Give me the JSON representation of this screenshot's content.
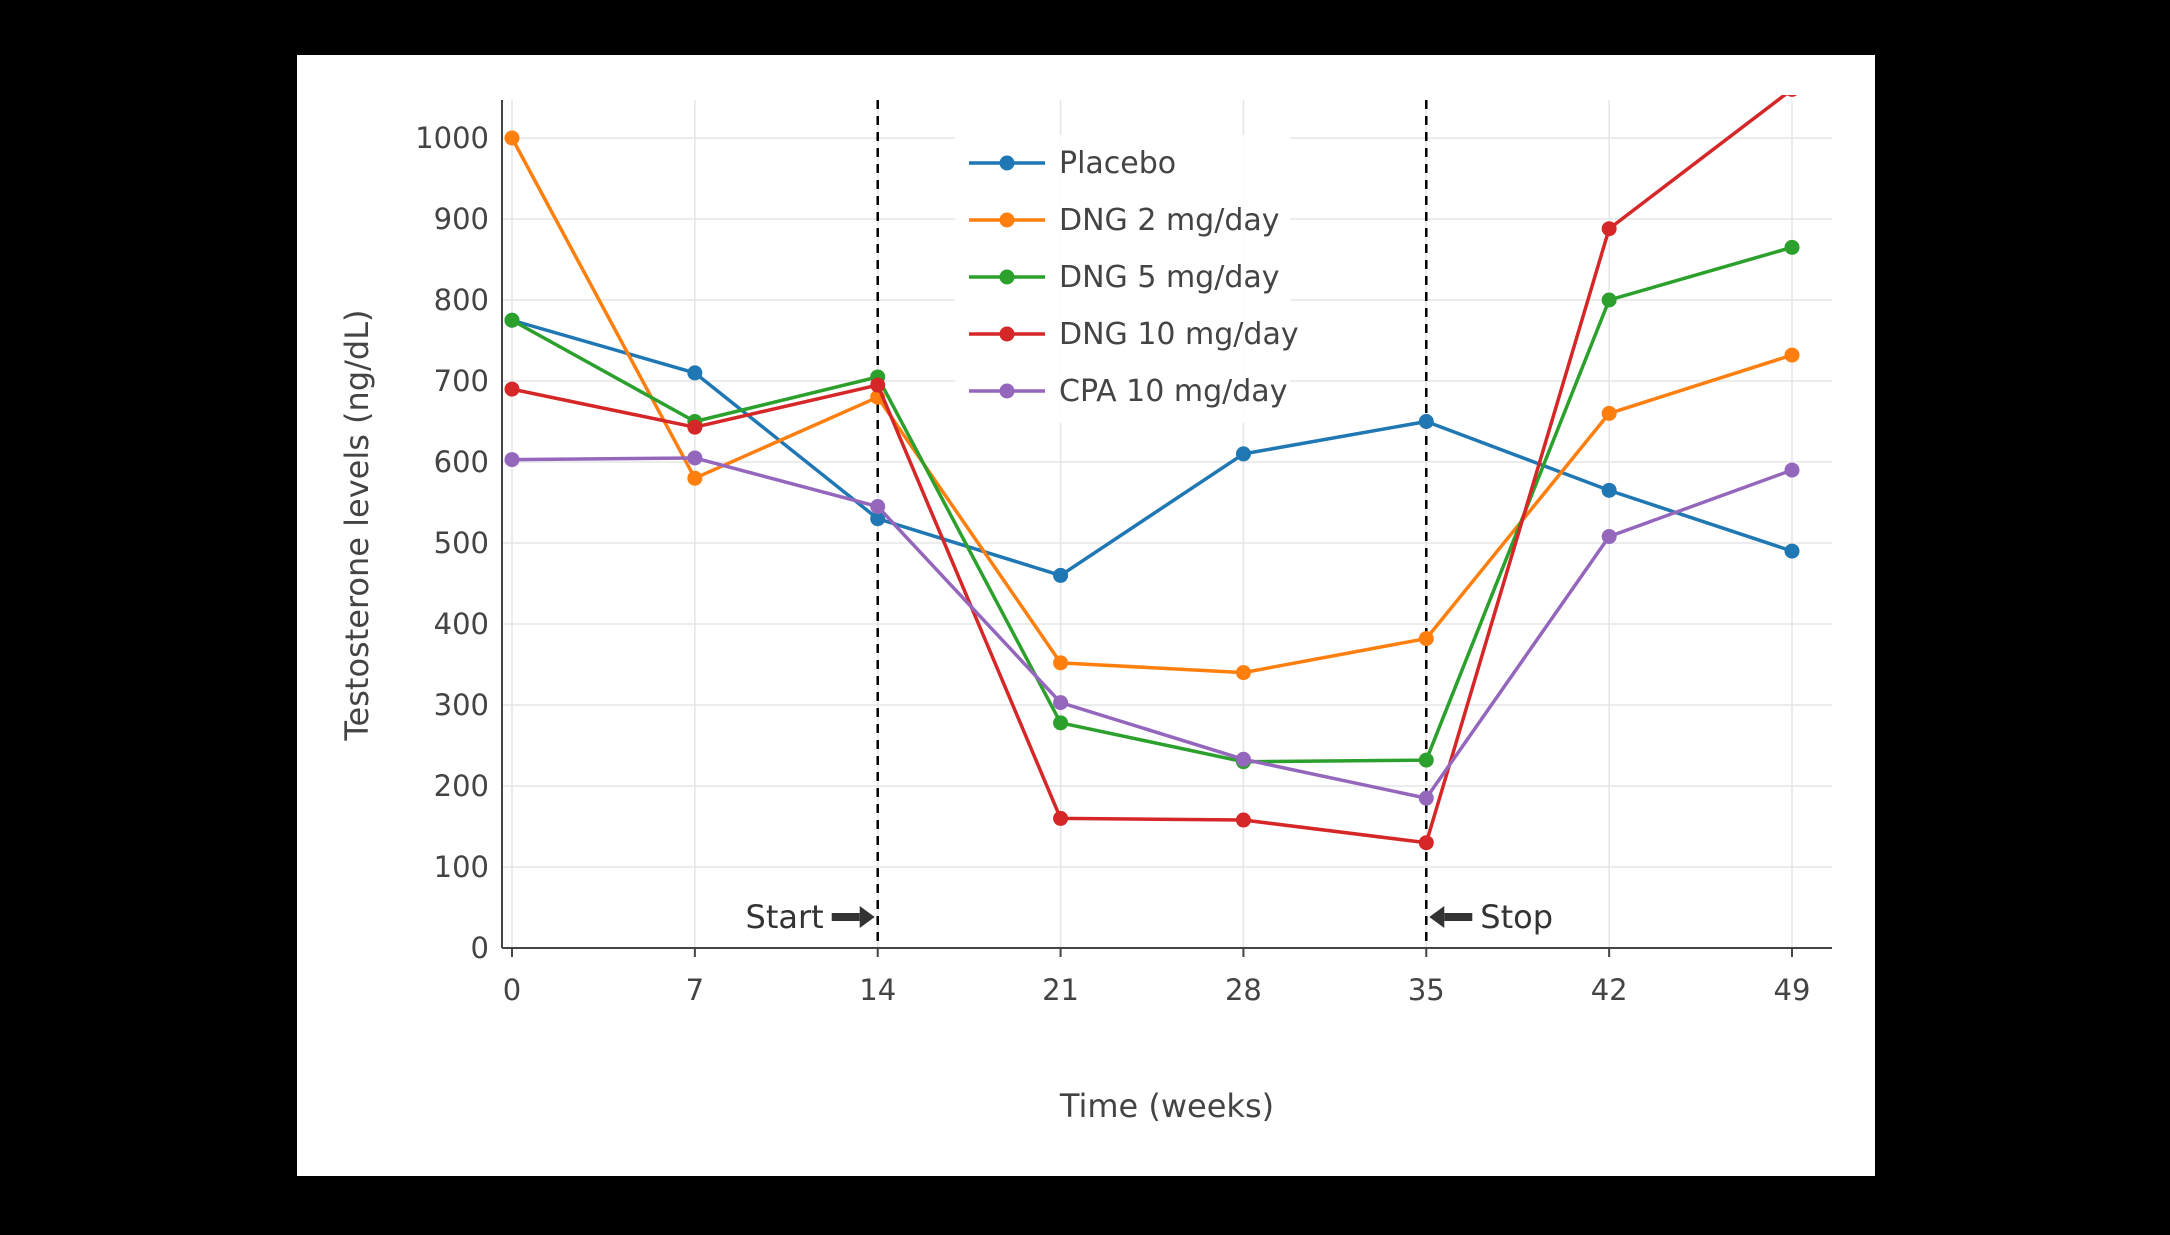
{
  "page": {
    "background": "#000000",
    "panel_background": "#ffffff"
  },
  "chart_data": {
    "type": "line",
    "title": "",
    "xlabel": "Time (weeks)",
    "ylabel": "Testosterone levels (ng/dL)",
    "x": [
      0,
      7,
      14,
      21,
      28,
      35,
      42,
      49
    ],
    "xtick_labels": [
      "0",
      "7",
      "14",
      "21",
      "28",
      "35",
      "42",
      "49"
    ],
    "xlim": [
      -0.4,
      50.5
    ],
    "ylim": [
      0,
      1000
    ],
    "ytick_step": 100,
    "ytick_labels": [
      "0",
      "100",
      "200",
      "300",
      "400",
      "500",
      "600",
      "700",
      "800",
      "900",
      "1000"
    ],
    "grid": true,
    "legend_position": "inside-top-center",
    "series": [
      {
        "name": "Placebo",
        "color": "#1f77b4",
        "values": [
          775,
          710,
          530,
          460,
          610,
          650,
          565,
          490
        ]
      },
      {
        "name": "DNG 2 mg/day",
        "color": "#ff7f0e",
        "values": [
          1000,
          580,
          680,
          352,
          340,
          382,
          660,
          732
        ]
      },
      {
        "name": "DNG 5 mg/day",
        "color": "#2ca02c",
        "values": [
          775,
          650,
          705,
          278,
          230,
          232,
          800,
          865
        ]
      },
      {
        "name": "DNG 10 mg/day",
        "color": "#d62728",
        "values": [
          690,
          643,
          695,
          160,
          158,
          130,
          888,
          1060
        ]
      },
      {
        "name": "CPA 10 mg/day",
        "color": "#9467bd",
        "values": [
          603,
          605,
          545,
          303,
          233,
          185,
          508,
          590
        ]
      }
    ],
    "vlines": [
      {
        "x": 14,
        "style": "dashed",
        "color": "#000000"
      },
      {
        "x": 35,
        "style": "dashed",
        "color": "#000000"
      }
    ],
    "annotations": [
      {
        "text": "Start",
        "x": 14,
        "y": 45,
        "arrow": "right"
      },
      {
        "text": "Stop",
        "x": 35,
        "y": 45,
        "arrow": "left"
      }
    ],
    "style": {
      "grid_color": "#e5e5e5",
      "axis_color": "#444444",
      "text_color": "#444444",
      "annotation_color": "#333333",
      "vline_color": "#000000"
    }
  }
}
